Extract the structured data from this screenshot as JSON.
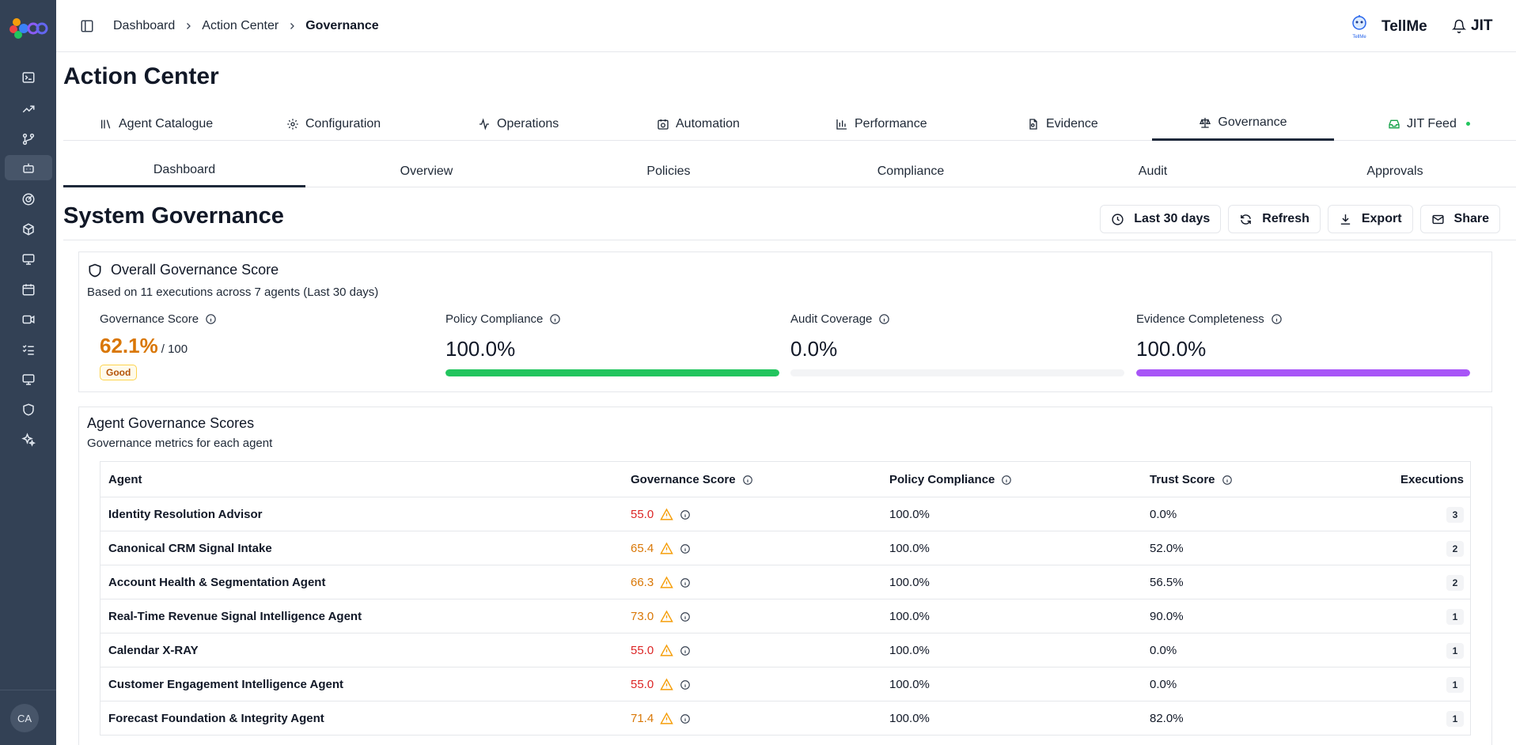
{
  "colors": {
    "sidebar": "#334155",
    "accent_green": "#22c55e",
    "accent_purple": "#a855f7",
    "score_amber": "#d97706",
    "score_red": "#dc2626"
  },
  "sidebar": {
    "items": [
      {
        "icon": "terminal-icon"
      },
      {
        "icon": "trending-up-icon"
      },
      {
        "icon": "git-branch-icon"
      },
      {
        "icon": "bot-icon",
        "active": true
      },
      {
        "icon": "radar-icon"
      },
      {
        "icon": "box-icon"
      },
      {
        "icon": "monitor-icon"
      },
      {
        "icon": "calendar-icon"
      },
      {
        "icon": "video-icon"
      },
      {
        "icon": "list-checks-icon"
      },
      {
        "icon": "monitor-icon"
      },
      {
        "icon": "shield-icon"
      },
      {
        "icon": "sparkles-icon"
      }
    ],
    "avatar": "CA"
  },
  "breadcrumb": {
    "item1": "Dashboard",
    "item2": "Action Center",
    "current": "Governance"
  },
  "header": {
    "tellme_label": "TellMe",
    "tellme_logo_text": "TellMe",
    "jit_label": "JIT"
  },
  "page_title": "Action Center",
  "main_tabs": [
    {
      "label": "Agent Catalogue",
      "icon": "library-icon"
    },
    {
      "label": "Configuration",
      "icon": "gear-icon"
    },
    {
      "label": "Operations",
      "icon": "activity-icon"
    },
    {
      "label": "Automation",
      "icon": "calendar-clock-icon"
    },
    {
      "label": "Performance",
      "icon": "bar-chart-icon"
    },
    {
      "label": "Evidence",
      "icon": "file-search-icon"
    },
    {
      "label": "Governance",
      "icon": "scale-icon",
      "active": true
    },
    {
      "label": "JIT Feed",
      "icon": "inbox-icon"
    }
  ],
  "sub_tabs": [
    "Dashboard",
    "Overview",
    "Policies",
    "Compliance",
    "Audit",
    "Approvals"
  ],
  "section_title": "System Governance",
  "actions": {
    "range": "Last 30 days",
    "refresh": "Refresh",
    "export": "Export",
    "share": "Share"
  },
  "overall": {
    "title": "Overall Governance Score",
    "subtitle": "Based on 11 executions across 7 agents (Last 30 days)",
    "governance_label": "Governance Score",
    "governance_value": "62.1%",
    "governance_of": "/ 100",
    "governance_badge": "Good",
    "policy_label": "Policy Compliance",
    "policy_value": "100.0%",
    "policy_fill": 1.0,
    "audit_label": "Audit Coverage",
    "audit_value": "0.0%",
    "audit_fill": 0.0,
    "evidence_label": "Evidence Completeness",
    "evidence_value": "100.0%",
    "evidence_fill": 1.0
  },
  "agents": {
    "title": "Agent Governance Scores",
    "subtitle": "Governance metrics for each agent",
    "columns": {
      "agent": "Agent",
      "governance": "Governance Score",
      "policy": "Policy Compliance",
      "trust": "Trust Score",
      "executions": "Executions"
    },
    "rows": [
      {
        "agent": "Identity Resolution Advisor",
        "gov": "55.0",
        "level": "red",
        "policy": "100.0%",
        "trust": "0.0%",
        "exec": "3"
      },
      {
        "agent": "Canonical CRM Signal Intake",
        "gov": "65.4",
        "level": "amber",
        "policy": "100.0%",
        "trust": "52.0%",
        "exec": "2"
      },
      {
        "agent": "Account Health & Segmentation Agent",
        "gov": "66.3",
        "level": "amber",
        "policy": "100.0%",
        "trust": "56.5%",
        "exec": "2"
      },
      {
        "agent": "Real-Time Revenue Signal Intelligence Agent",
        "gov": "73.0",
        "level": "amber",
        "policy": "100.0%",
        "trust": "90.0%",
        "exec": "1"
      },
      {
        "agent": "Calendar X-RAY",
        "gov": "55.0",
        "level": "red",
        "policy": "100.0%",
        "trust": "0.0%",
        "exec": "1"
      },
      {
        "agent": "Customer Engagement Intelligence Agent",
        "gov": "55.0",
        "level": "red",
        "policy": "100.0%",
        "trust": "0.0%",
        "exec": "1"
      },
      {
        "agent": "Forecast Foundation & Integrity Agent",
        "gov": "71.4",
        "level": "amber",
        "policy": "100.0%",
        "trust": "82.0%",
        "exec": "1"
      }
    ]
  }
}
